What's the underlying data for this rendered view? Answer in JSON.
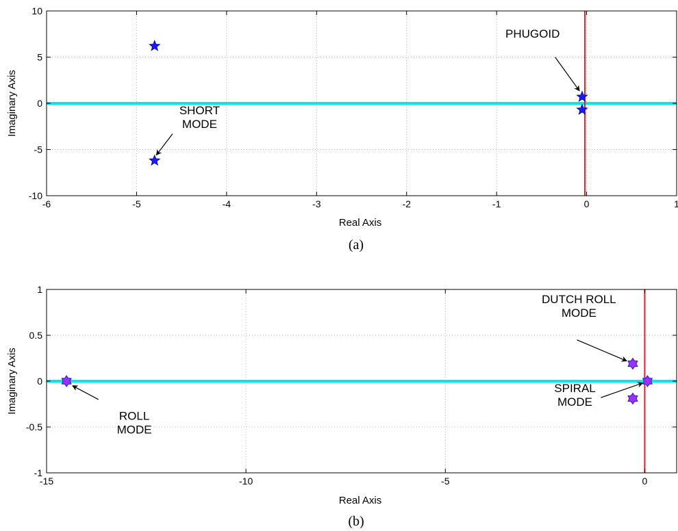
{
  "chart_data": [
    {
      "type": "scatter",
      "panel_label": "(a)",
      "xlabel": "Real Axis",
      "ylabel": "Imaginary Axis",
      "xlim": [
        -6,
        1
      ],
      "ylim": [
        -10,
        10
      ],
      "x_ticks": [
        -6,
        -5,
        -4,
        -3,
        -2,
        -1,
        0,
        1
      ],
      "y_ticks": [
        -10,
        -5,
        0,
        5,
        10
      ],
      "grid": true,
      "real_axis_color": "#00e5ee",
      "imag_axis_color": "#e02020",
      "imag_axis_x": -0.02,
      "marker_fill": "#1a1aff",
      "marker_stroke": "#00008b",
      "points": [
        {
          "x": -4.8,
          "y": 6.2
        },
        {
          "x": -4.8,
          "y": -6.2
        },
        {
          "x": -0.05,
          "y": 0.7
        },
        {
          "x": -0.05,
          "y": -0.7
        }
      ],
      "annotations": [
        {
          "lines": [
            "SHORT",
            "MODE"
          ],
          "text_x": -4.3,
          "text_y": -1.2,
          "arrow_from": [
            -4.6,
            -3.3
          ],
          "arrow_to": [
            -4.78,
            -5.6
          ]
        },
        {
          "lines": [
            "PHUGOID"
          ],
          "text_x": -0.6,
          "text_y": 7.1,
          "arrow_from": [
            -0.35,
            5.0
          ],
          "arrow_to": [
            -0.08,
            1.35
          ]
        }
      ]
    },
    {
      "type": "scatter",
      "panel_label": "(b)",
      "xlabel": "Real Axis",
      "ylabel": "Imaginary Axis",
      "xlim": [
        -15,
        0.8
      ],
      "ylim": [
        -1,
        1
      ],
      "x_ticks": [
        -15,
        -10,
        -5,
        0
      ],
      "y_ticks": [
        -1,
        -0.5,
        0,
        0.5,
        1
      ],
      "grid": true,
      "real_axis_color": "#00e5ee",
      "imag_axis_color": "#e02020",
      "imag_axis_x": 0.0,
      "marker_fill": "#9b30ff",
      "marker_stroke": "#2020c0",
      "points": [
        {
          "x": -14.5,
          "y": 0.0
        },
        {
          "x": -0.3,
          "y": 0.19
        },
        {
          "x": -0.3,
          "y": -0.19
        },
        {
          "x": 0.07,
          "y": 0.0
        }
      ],
      "annotations": [
        {
          "lines": [
            "ROLL",
            "MODE"
          ],
          "text_x": -12.8,
          "text_y": -0.42,
          "arrow_from": [
            -13.7,
            -0.2
          ],
          "arrow_to": [
            -14.35,
            -0.05
          ]
        },
        {
          "lines": [
            "DUTCH ROLL",
            "MODE"
          ],
          "text_x": -1.65,
          "text_y": 0.85,
          "arrow_from": [
            -1.7,
            0.45
          ],
          "arrow_to": [
            -0.45,
            0.22
          ]
        },
        {
          "lines": [
            "SPIRAL",
            "MODE"
          ],
          "text_x": -1.75,
          "text_y": -0.12,
          "arrow_from": [
            -1.1,
            -0.18
          ],
          "arrow_to": [
            -0.05,
            -0.02
          ]
        }
      ]
    }
  ]
}
